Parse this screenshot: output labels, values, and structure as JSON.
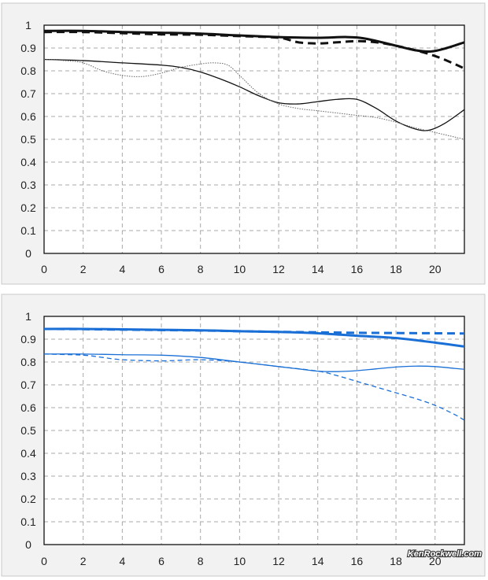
{
  "watermark": "KenRockwell.com",
  "colors": {
    "top_series": "#111111",
    "bottom_series": "#1a6fd6",
    "grid": "#a8a8a8",
    "panel_bg": "#f2f2f2"
  },
  "chart_data": [
    {
      "type": "line",
      "title": "",
      "xlabel": "",
      "ylabel": "",
      "xlim": [
        0,
        21.5
      ],
      "ylim": [
        0,
        1
      ],
      "x_ticks": [
        0,
        2,
        4,
        6,
        8,
        10,
        12,
        14,
        16,
        18,
        20
      ],
      "y_ticks": [
        "0",
        "0.1",
        "0.2",
        "0.3",
        "0.4",
        "0.5",
        "0.6",
        "0.7",
        "0.8",
        "0.9",
        "1"
      ],
      "grid": true,
      "legend": "none",
      "series": [
        {
          "style": "thick-solid",
          "color": "#111111",
          "x": [
            0,
            2,
            4,
            6,
            8,
            10,
            12,
            14,
            15.5,
            16.5,
            18,
            19,
            19.8,
            20.6,
            21.5
          ],
          "y": [
            0.975,
            0.975,
            0.97,
            0.967,
            0.963,
            0.955,
            0.948,
            0.945,
            0.948,
            0.94,
            0.91,
            0.89,
            0.885,
            0.9,
            0.925
          ]
        },
        {
          "style": "thick-dashed",
          "color": "#111111",
          "x": [
            0,
            2,
            4,
            6,
            8,
            10,
            12,
            13,
            14,
            15,
            16,
            17,
            18,
            19,
            20,
            21,
            21.5
          ],
          "y": [
            0.97,
            0.97,
            0.965,
            0.96,
            0.958,
            0.952,
            0.945,
            0.925,
            0.92,
            0.925,
            0.93,
            0.925,
            0.91,
            0.89,
            0.865,
            0.83,
            0.81
          ]
        },
        {
          "style": "thin-solid",
          "color": "#111111",
          "x": [
            0,
            2,
            4,
            6,
            7,
            8,
            9,
            10,
            11,
            12,
            13,
            14,
            15,
            16,
            17,
            18,
            19,
            19.7,
            20.5,
            21.5
          ],
          "y": [
            0.85,
            0.845,
            0.835,
            0.825,
            0.815,
            0.795,
            0.765,
            0.73,
            0.69,
            0.66,
            0.655,
            0.665,
            0.675,
            0.675,
            0.635,
            0.58,
            0.545,
            0.54,
            0.57,
            0.63
          ]
        },
        {
          "style": "thin-dotted",
          "color": "#666666",
          "x": [
            0,
            1,
            2,
            3,
            4,
            5,
            6,
            7,
            8,
            8.7,
            9.4,
            10,
            11,
            12,
            13,
            14,
            15,
            16,
            17,
            18,
            19,
            20,
            21,
            21.5
          ],
          "y": [
            0.85,
            0.845,
            0.835,
            0.8,
            0.78,
            0.775,
            0.79,
            0.815,
            0.83,
            0.835,
            0.825,
            0.78,
            0.7,
            0.655,
            0.635,
            0.625,
            0.615,
            0.605,
            0.595,
            0.575,
            0.55,
            0.53,
            0.51,
            0.5
          ]
        }
      ]
    },
    {
      "type": "line",
      "title": "",
      "xlabel": "",
      "ylabel": "",
      "xlim": [
        0,
        21.5
      ],
      "ylim": [
        0,
        1
      ],
      "x_ticks": [
        0,
        2,
        4,
        6,
        8,
        10,
        12,
        14,
        16,
        18,
        20
      ],
      "y_ticks": [
        "0",
        "0.1",
        "0.2",
        "0.3",
        "0.4",
        "0.5",
        "0.6",
        "0.7",
        "0.8",
        "0.9",
        "1"
      ],
      "grid": true,
      "legend": "none",
      "series": [
        {
          "style": "thick-solid",
          "color": "#1a6fd6",
          "x": [
            0,
            2,
            4,
            6,
            8,
            10,
            12,
            14,
            16,
            18,
            20,
            21.5
          ],
          "y": [
            0.945,
            0.945,
            0.943,
            0.941,
            0.939,
            0.935,
            0.932,
            0.926,
            0.915,
            0.905,
            0.885,
            0.868
          ]
        },
        {
          "style": "thick-dashed",
          "color": "#1a6fd6",
          "x": [
            0,
            2,
            4,
            6,
            8,
            10,
            12,
            14,
            16,
            18,
            20,
            21.5
          ],
          "y": [
            0.945,
            0.944,
            0.942,
            0.94,
            0.938,
            0.935,
            0.932,
            0.93,
            0.928,
            0.927,
            0.926,
            0.925
          ]
        },
        {
          "style": "thin-solid",
          "color": "#1a6fd6",
          "x": [
            0,
            2,
            4,
            6,
            8,
            10,
            12,
            13,
            14,
            15,
            16,
            17,
            18,
            19,
            20,
            21,
            21.5
          ],
          "y": [
            0.835,
            0.835,
            0.832,
            0.83,
            0.82,
            0.8,
            0.78,
            0.77,
            0.76,
            0.758,
            0.762,
            0.77,
            0.778,
            0.782,
            0.78,
            0.772,
            0.768
          ]
        },
        {
          "style": "thin-dashed",
          "color": "#1a6fd6",
          "x": [
            0,
            2,
            3,
            4,
            6,
            8,
            10,
            12,
            14,
            15,
            16,
            17,
            18,
            19,
            20,
            21,
            21.5
          ],
          "y": [
            0.835,
            0.83,
            0.82,
            0.81,
            0.805,
            0.81,
            0.8,
            0.78,
            0.76,
            0.74,
            0.715,
            0.69,
            0.665,
            0.64,
            0.61,
            0.57,
            0.545
          ]
        }
      ]
    }
  ]
}
